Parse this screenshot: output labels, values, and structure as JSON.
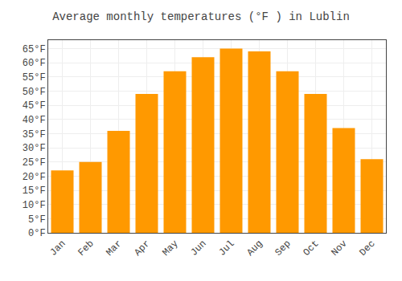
{
  "chart_data": {
    "type": "bar",
    "title": "Average monthly temperatures (°F ) in Lublin",
    "categories": [
      "Jan",
      "Feb",
      "Mar",
      "Apr",
      "May",
      "Jun",
      "Jul",
      "Aug",
      "Sep",
      "Oct",
      "Nov",
      "Dec"
    ],
    "values": [
      22,
      25,
      36,
      49,
      57,
      62,
      65,
      64,
      57,
      49,
      37,
      26
    ],
    "color": "#FF9900",
    "ylim": [
      0,
      68
    ],
    "yticks": [
      {
        "value": 0,
        "label": "0°F"
      },
      {
        "value": 5,
        "label": "5°F"
      },
      {
        "value": 10,
        "label": "10°F"
      },
      {
        "value": 15,
        "label": "15°F"
      },
      {
        "value": 20,
        "label": "20°F"
      },
      {
        "value": 25,
        "label": "25°F"
      },
      {
        "value": 30,
        "label": "30°F"
      },
      {
        "value": 35,
        "label": "35°F"
      },
      {
        "value": 40,
        "label": "40°F"
      },
      {
        "value": 45,
        "label": "45°F"
      },
      {
        "value": 50,
        "label": "50°F"
      },
      {
        "value": 55,
        "label": "55°F"
      },
      {
        "value": 60,
        "label": "60°F"
      },
      {
        "value": 65,
        "label": "65°F"
      }
    ],
    "grid": true
  }
}
